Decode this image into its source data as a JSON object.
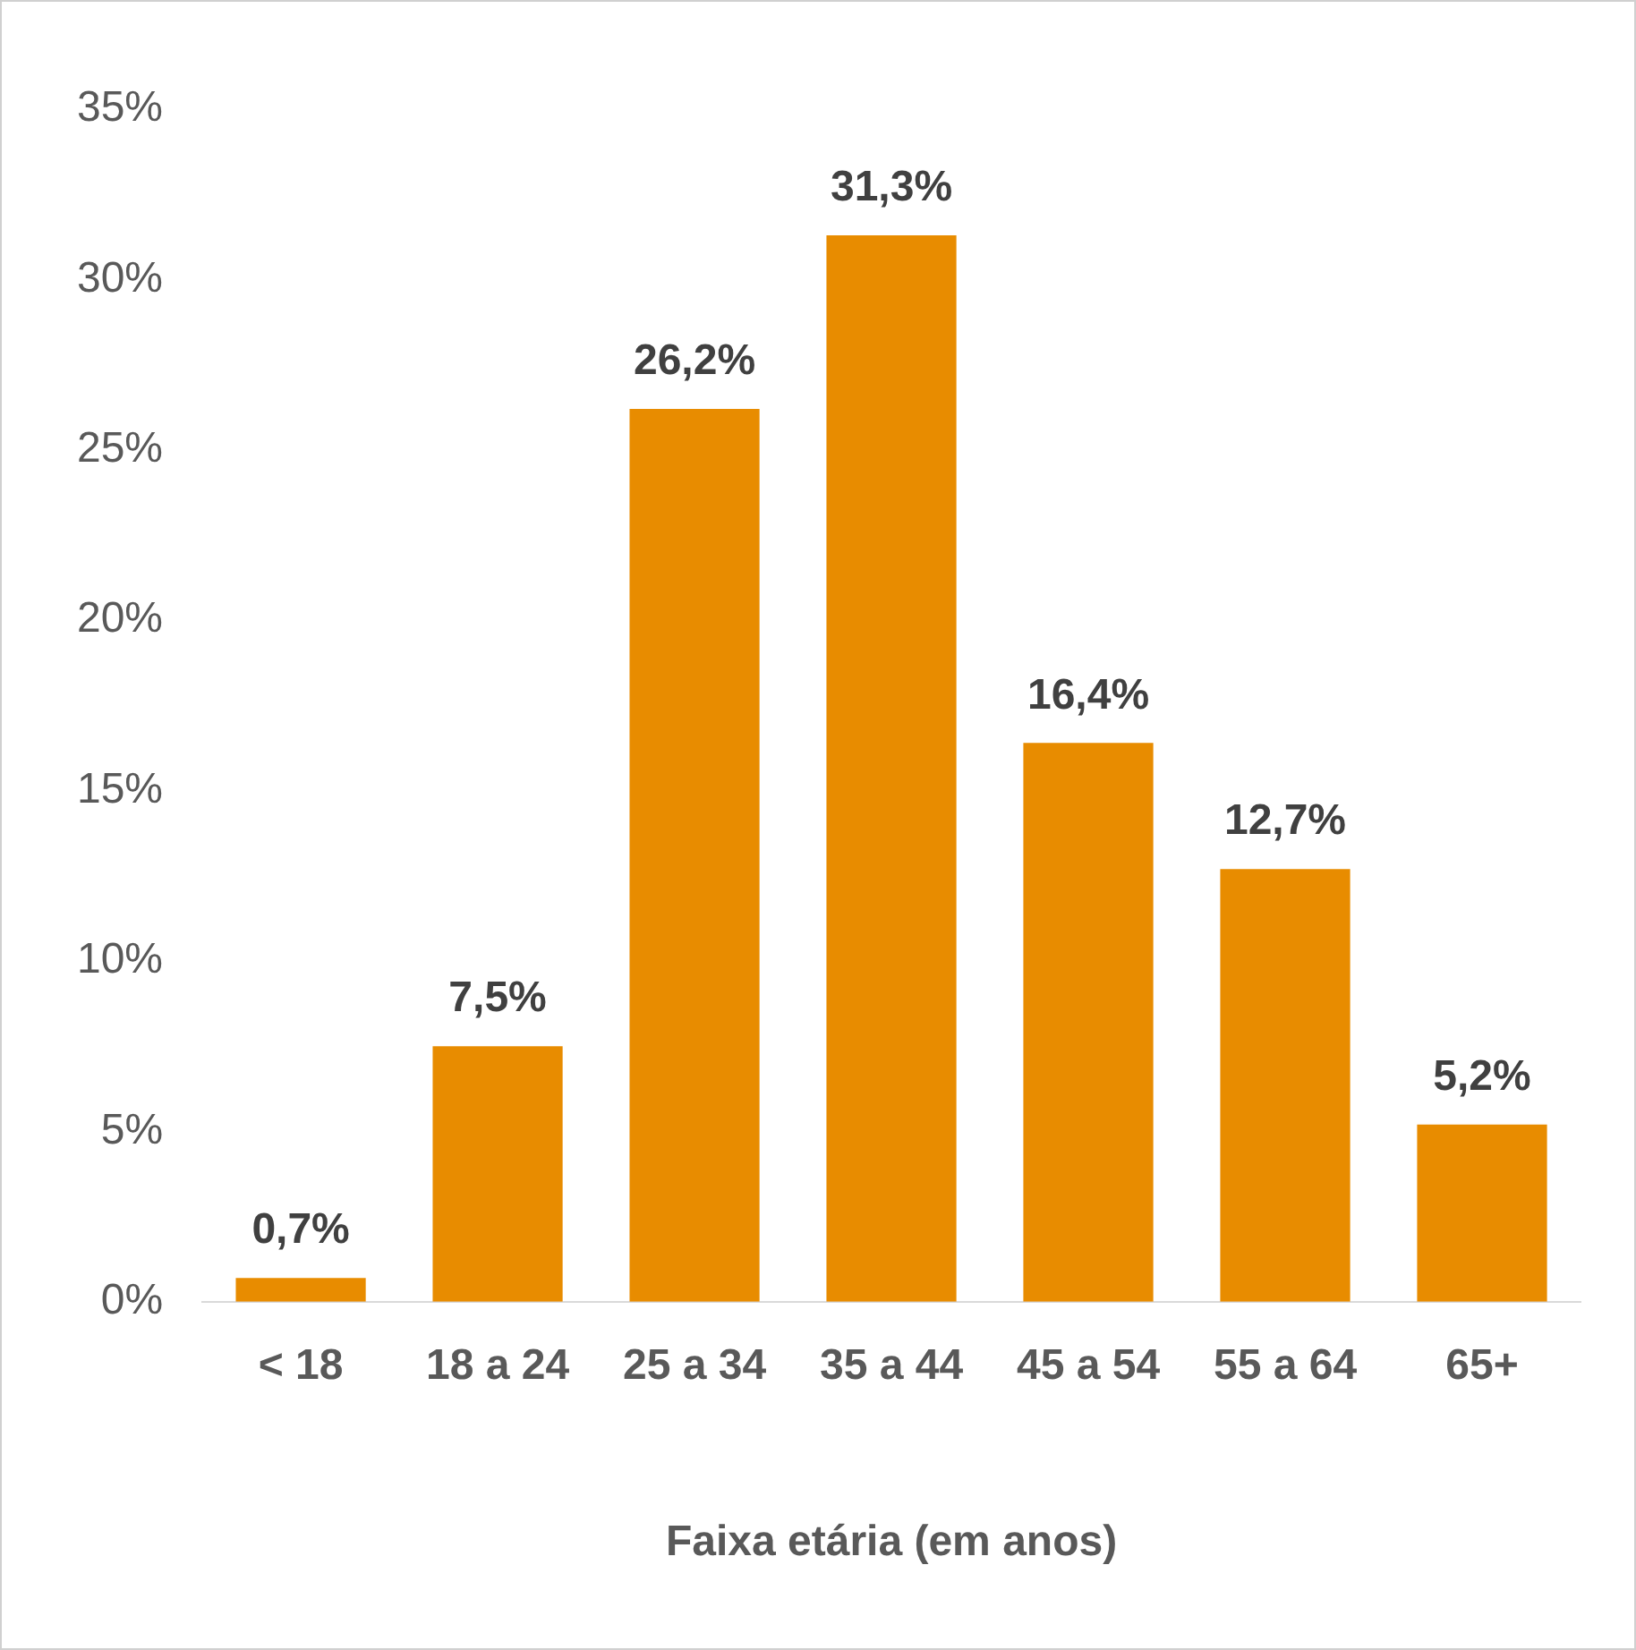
{
  "chart_data": {
    "type": "bar",
    "xlabel": "Faixa etária (em anos)",
    "categories": [
      "< 18",
      "18 a 24",
      "25 a 34",
      "35 a 44",
      "45 a 54",
      "55 a 64",
      "65+"
    ],
    "values": [
      0.7,
      7.5,
      26.2,
      31.3,
      16.4,
      12.7,
      5.2
    ],
    "value_labels": [
      "0,7%",
      "7,5%",
      "26,2%",
      "31,3%",
      "16,4%",
      "12,7%",
      "5,2%"
    ],
    "color": "#e88c00",
    "ylim": [
      0,
      35
    ],
    "yticks": [
      {
        "value": 0,
        "label": "0%"
      },
      {
        "value": 5,
        "label": "5%"
      },
      {
        "value": 10,
        "label": "10%"
      },
      {
        "value": 15,
        "label": "15%"
      },
      {
        "value": 20,
        "label": "20%"
      },
      {
        "value": 25,
        "label": "25%"
      },
      {
        "value": 30,
        "label": "30%"
      },
      {
        "value": 35,
        "label": "35%"
      }
    ],
    "grid": false,
    "legend": false
  }
}
